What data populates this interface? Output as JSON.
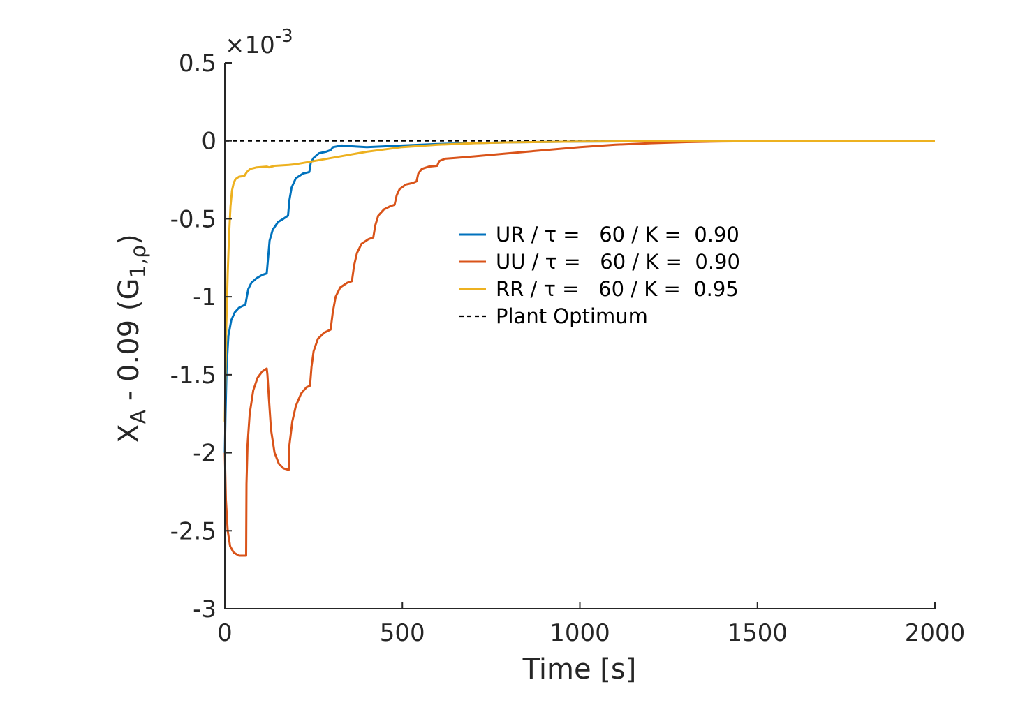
{
  "chart_data": {
    "type": "line",
    "title": "",
    "xlabel": "Time [s]",
    "ylabel": {
      "main": "X",
      "sub": "A",
      "mid": " - 0.09 (G",
      "sub2": "1,ρ",
      "end": ")"
    },
    "exponent_label": {
      "base": "×10",
      "power": "-3"
    },
    "xlim": [
      0,
      2000
    ],
    "ylim": [
      -3,
      0.5
    ],
    "xticks": [
      0,
      500,
      1000,
      1500,
      2000
    ],
    "xtick_labels": [
      "0",
      "500",
      "1000",
      "1500",
      "2000"
    ],
    "yticks": [
      0.5,
      0,
      -0.5,
      -1,
      -1.5,
      -2,
      -2.5,
      -3
    ],
    "ytick_labels": [
      "0.5",
      "0",
      "-0.5",
      "-1",
      "-1.5",
      "-2",
      "-2.5",
      "-3"
    ],
    "grid": false,
    "legend_position": "center-right",
    "series": [
      {
        "name": "UR / τ =   60 / K =  0.90",
        "color": "#0072BD",
        "style": "solid",
        "points": [
          [
            0,
            -2.0
          ],
          [
            2,
            -1.75
          ],
          [
            5,
            -1.45
          ],
          [
            10,
            -1.25
          ],
          [
            18,
            -1.15
          ],
          [
            28,
            -1.1
          ],
          [
            40,
            -1.07
          ],
          [
            58,
            -1.05
          ],
          [
            62,
            -1.0
          ],
          [
            66,
            -0.95
          ],
          [
            75,
            -0.91
          ],
          [
            90,
            -0.88
          ],
          [
            105,
            -0.86
          ],
          [
            118,
            -0.85
          ],
          [
            122,
            -0.75
          ],
          [
            126,
            -0.64
          ],
          [
            135,
            -0.57
          ],
          [
            150,
            -0.52
          ],
          [
            165,
            -0.5
          ],
          [
            178,
            -0.48
          ],
          [
            182,
            -0.38
          ],
          [
            188,
            -0.3
          ],
          [
            200,
            -0.24
          ],
          [
            220,
            -0.21
          ],
          [
            238,
            -0.2
          ],
          [
            242,
            -0.14
          ],
          [
            250,
            -0.11
          ],
          [
            265,
            -0.08
          ],
          [
            285,
            -0.07
          ],
          [
            298,
            -0.06
          ],
          [
            305,
            -0.04
          ],
          [
            330,
            -0.03
          ],
          [
            358,
            -0.035
          ],
          [
            400,
            -0.04
          ],
          [
            500,
            -0.03
          ],
          [
            600,
            -0.02
          ],
          [
            800,
            -0.01
          ],
          [
            1000,
            -0.005
          ],
          [
            1500,
            0
          ],
          [
            2000,
            0
          ]
        ]
      },
      {
        "name": "UU / τ =   60 / K =  0.90",
        "color": "#D95319",
        "style": "solid",
        "points": [
          [
            0,
            -2.0
          ],
          [
            3,
            -2.3
          ],
          [
            8,
            -2.5
          ],
          [
            15,
            -2.6
          ],
          [
            25,
            -2.64
          ],
          [
            40,
            -2.66
          ],
          [
            60,
            -2.66
          ],
          [
            61,
            -2.2
          ],
          [
            64,
            -1.95
          ],
          [
            70,
            -1.75
          ],
          [
            80,
            -1.6
          ],
          [
            92,
            -1.52
          ],
          [
            105,
            -1.48
          ],
          [
            118,
            -1.46
          ],
          [
            120,
            -1.5
          ],
          [
            124,
            -1.65
          ],
          [
            130,
            -1.85
          ],
          [
            140,
            -2.0
          ],
          [
            152,
            -2.07
          ],
          [
            165,
            -2.1
          ],
          [
            180,
            -2.11
          ],
          [
            182,
            -1.95
          ],
          [
            190,
            -1.8
          ],
          [
            200,
            -1.7
          ],
          [
            215,
            -1.62
          ],
          [
            230,
            -1.58
          ],
          [
            240,
            -1.57
          ],
          [
            244,
            -1.45
          ],
          [
            250,
            -1.35
          ],
          [
            262,
            -1.27
          ],
          [
            280,
            -1.23
          ],
          [
            298,
            -1.21
          ],
          [
            304,
            -1.1
          ],
          [
            312,
            -1.0
          ],
          [
            325,
            -0.94
          ],
          [
            345,
            -0.91
          ],
          [
            358,
            -0.9
          ],
          [
            364,
            -0.8
          ],
          [
            372,
            -0.72
          ],
          [
            385,
            -0.66
          ],
          [
            405,
            -0.63
          ],
          [
            418,
            -0.62
          ],
          [
            424,
            -0.54
          ],
          [
            432,
            -0.48
          ],
          [
            448,
            -0.44
          ],
          [
            465,
            -0.42
          ],
          [
            478,
            -0.41
          ],
          [
            484,
            -0.35
          ],
          [
            492,
            -0.31
          ],
          [
            510,
            -0.28
          ],
          [
            530,
            -0.27
          ],
          [
            540,
            -0.26
          ],
          [
            545,
            -0.21
          ],
          [
            555,
            -0.18
          ],
          [
            575,
            -0.165
          ],
          [
            598,
            -0.16
          ],
          [
            604,
            -0.13
          ],
          [
            620,
            -0.115
          ],
          [
            650,
            -0.11
          ],
          [
            700,
            -0.1
          ],
          [
            800,
            -0.08
          ],
          [
            900,
            -0.06
          ],
          [
            1000,
            -0.04
          ],
          [
            1100,
            -0.025
          ],
          [
            1200,
            -0.015
          ],
          [
            1300,
            -0.008
          ],
          [
            1400,
            -0.004
          ],
          [
            1500,
            -0.002
          ],
          [
            2000,
            0
          ]
        ]
      },
      {
        "name": "RR / τ =   60 / K =  0.95",
        "color": "#EDB120",
        "style": "solid",
        "points": [
          [
            0,
            -1.8
          ],
          [
            4,
            -1.2
          ],
          [
            8,
            -0.85
          ],
          [
            12,
            -0.6
          ],
          [
            16,
            -0.42
          ],
          [
            20,
            -0.32
          ],
          [
            25,
            -0.27
          ],
          [
            30,
            -0.245
          ],
          [
            40,
            -0.23
          ],
          [
            55,
            -0.225
          ],
          [
            62,
            -0.2
          ],
          [
            72,
            -0.18
          ],
          [
            90,
            -0.17
          ],
          [
            118,
            -0.165
          ],
          [
            124,
            -0.17
          ],
          [
            140,
            -0.16
          ],
          [
            180,
            -0.155
          ],
          [
            200,
            -0.15
          ],
          [
            250,
            -0.13
          ],
          [
            300,
            -0.11
          ],
          [
            400,
            -0.07
          ],
          [
            500,
            -0.04
          ],
          [
            600,
            -0.025
          ],
          [
            700,
            -0.015
          ],
          [
            800,
            -0.01
          ],
          [
            1000,
            -0.005
          ],
          [
            1500,
            0
          ],
          [
            2000,
            0
          ]
        ]
      },
      {
        "name": "Plant Optimum",
        "color": "#000000",
        "style": "dashed",
        "points": [
          [
            0,
            0
          ],
          [
            2000,
            0
          ]
        ]
      }
    ]
  }
}
